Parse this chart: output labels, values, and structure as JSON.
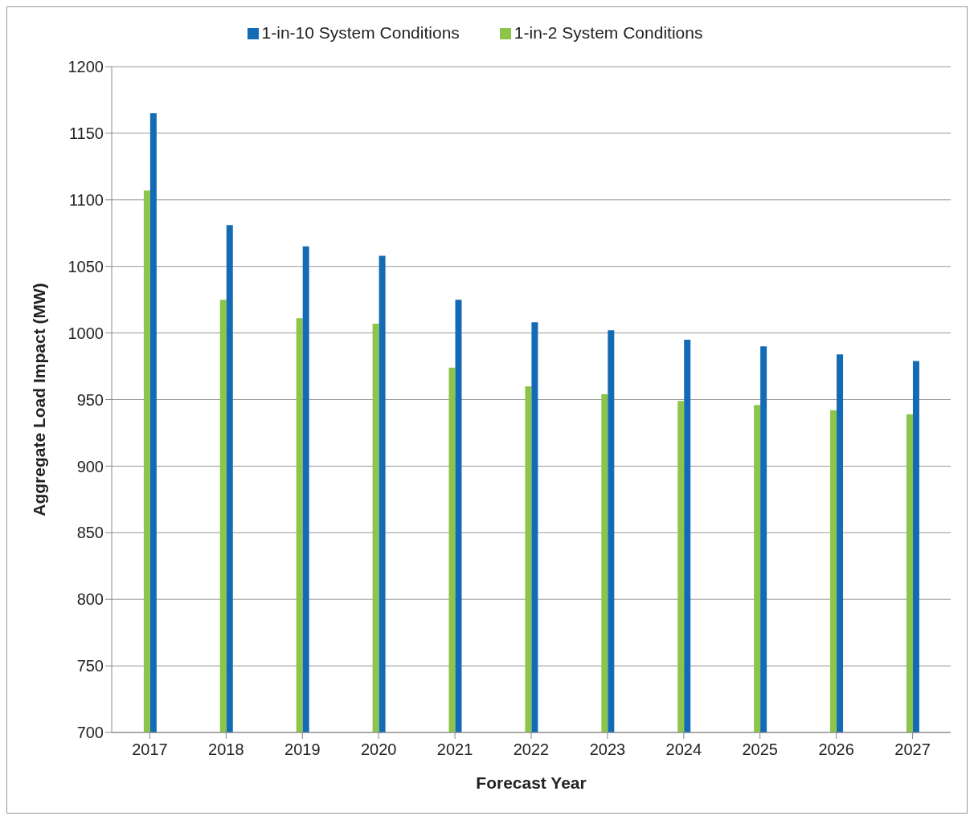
{
  "chart_data": {
    "type": "bar",
    "xlabel": "Forecast Year",
    "ylabel": "Aggregate Load Impact (MW)",
    "categories": [
      "2017",
      "2018",
      "2019",
      "2020",
      "2021",
      "2022",
      "2023",
      "2024",
      "2025",
      "2026",
      "2027"
    ],
    "series": [
      {
        "name": "1-in-2 System Conditions",
        "color": "#8dc54b",
        "values": [
          1107,
          1025,
          1011,
          1007,
          974,
          960,
          954,
          949,
          946,
          942,
          939
        ]
      },
      {
        "name": "1-in-10 System Conditions",
        "color": "#146bb5",
        "values": [
          1165,
          1081,
          1065,
          1058,
          1025,
          1008,
          1002,
          995,
          990,
          984,
          979
        ]
      }
    ],
    "ylim": [
      700,
      1200
    ],
    "yticks": [
      700,
      750,
      800,
      850,
      900,
      950,
      1000,
      1050,
      1100,
      1150,
      1200
    ],
    "grid": "y",
    "legend": "top"
  }
}
